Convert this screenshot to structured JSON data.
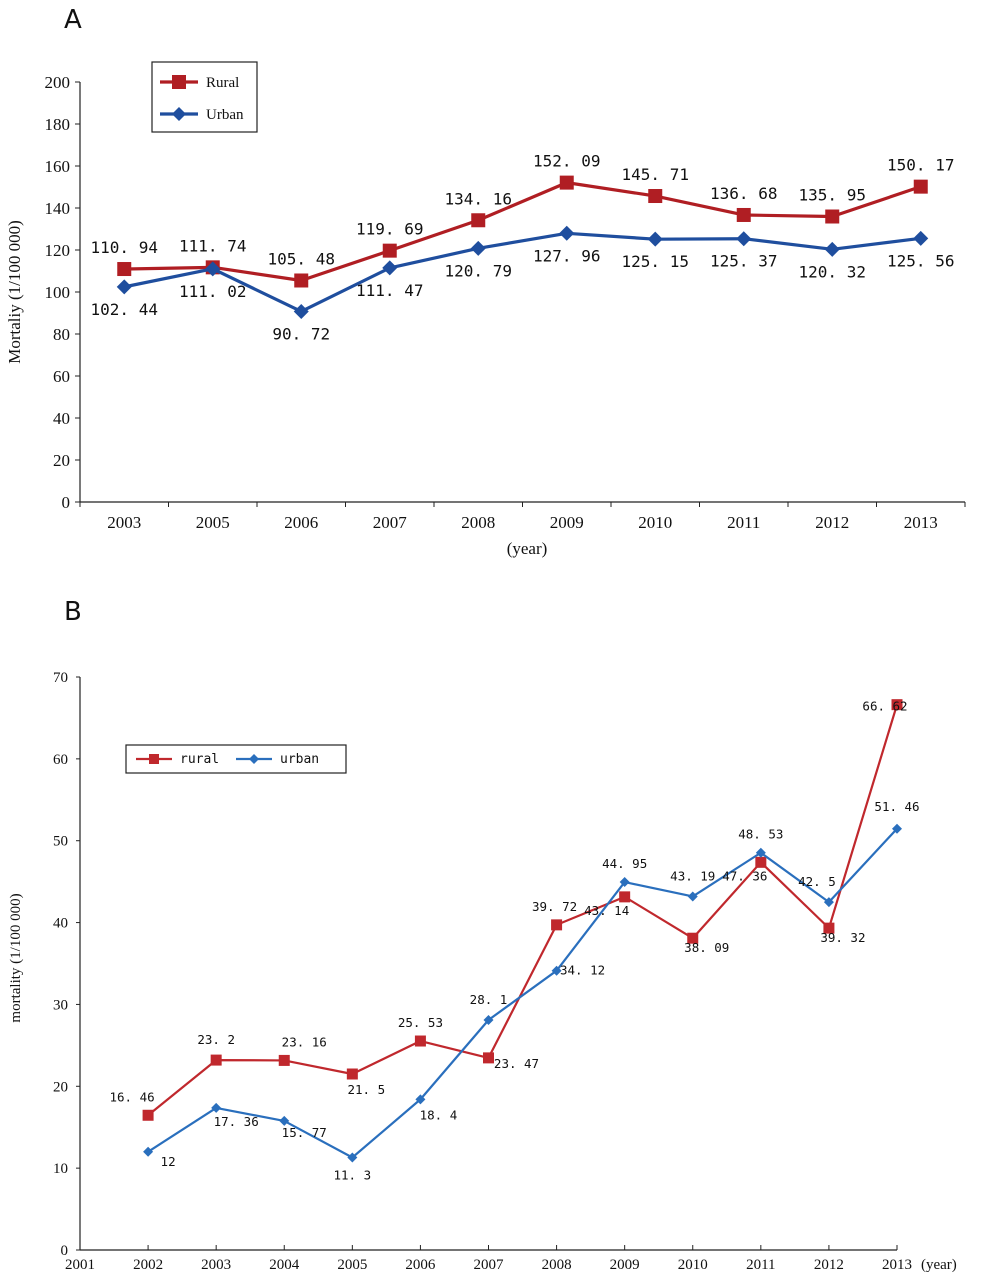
{
  "chart_data": [
    {
      "panel": "A",
      "type": "line",
      "categories": [
        "2003",
        "2005",
        "2006",
        "2007",
        "2008",
        "2009",
        "2010",
        "2011",
        "2012",
        "2013"
      ],
      "series": [
        {
          "name": "Rural",
          "color": "#b01e23",
          "marker": "square",
          "values": [
            110.94,
            111.74,
            105.48,
            119.69,
            134.16,
            152.09,
            145.71,
            136.68,
            135.95,
            150.17
          ],
          "labels": [
            "110. 94",
            "111. 74",
            "105. 48",
            "119. 69",
            "134. 16",
            "152. 09",
            "145. 71",
            "136. 68",
            "135. 95",
            "150. 17"
          ]
        },
        {
          "name": "Urban",
          "color": "#1f4e9e",
          "marker": "diamond",
          "values": [
            102.44,
            111.02,
            90.72,
            111.47,
            120.79,
            127.96,
            125.15,
            125.37,
            120.32,
            125.56
          ],
          "labels": [
            "102. 44",
            "111. 02",
            "90. 72",
            "111. 47",
            "120. 79",
            "127. 96",
            "125. 15",
            "125. 37",
            "120. 32",
            "125. 56"
          ]
        }
      ],
      "yticks": [
        "0",
        "20",
        "40",
        "60",
        "80",
        "100",
        "120",
        "140",
        "160",
        "180",
        "200"
      ],
      "ylim": [
        0,
        200
      ],
      "ylabel": "Mortaliy (1/100 000)",
      "xlabel": "(year)",
      "legend_position": "top-left",
      "grid": false
    },
    {
      "panel": "B",
      "type": "line",
      "x": [
        2002,
        2003,
        2004,
        2005,
        2006,
        2007,
        2008,
        2009,
        2010,
        2011,
        2012,
        2013
      ],
      "xticks": [
        "2001",
        "2002",
        "2003",
        "2004",
        "2005",
        "2006",
        "2007",
        "2008",
        "2009",
        "2010",
        "2011",
        "2012",
        "2013"
      ],
      "xunit": "(year)",
      "series": [
        {
          "name": "rural",
          "color": "#c0282d",
          "marker": "square",
          "values": [
            16.46,
            23.2,
            23.16,
            21.5,
            25.53,
            23.47,
            39.72,
            43.14,
            38.09,
            47.36,
            39.32,
            66.62
          ],
          "labels": [
            "16. 46",
            "23. 2",
            "23. 16",
            "21. 5",
            "25. 53",
            "23. 47",
            "39. 72",
            "43. 14",
            "38. 09",
            "47. 36",
            "39. 32",
            "66. 62"
          ]
        },
        {
          "name": "urban",
          "color": "#2a6fbd",
          "marker": "diamond",
          "values": [
            12,
            17.36,
            15.77,
            11.3,
            18.4,
            28.1,
            34.12,
            44.95,
            43.19,
            48.53,
            42.5,
            51.46
          ],
          "labels": [
            "12",
            "17. 36",
            "15. 77",
            "11. 3",
            "18. 4",
            "28. 1",
            "34. 12",
            "44. 95",
            "43. 19",
            "48. 53",
            "42. 5",
            "51. 46"
          ]
        }
      ],
      "yticks": [
        "0",
        "10",
        "20",
        "30",
        "40",
        "50",
        "60",
        "70"
      ],
      "ylim": [
        0,
        70
      ],
      "ylabel": "mortality (1/100 000)",
      "legend_position": "upper-left",
      "grid": false
    }
  ],
  "panels": {
    "a": "A",
    "b": "B"
  }
}
